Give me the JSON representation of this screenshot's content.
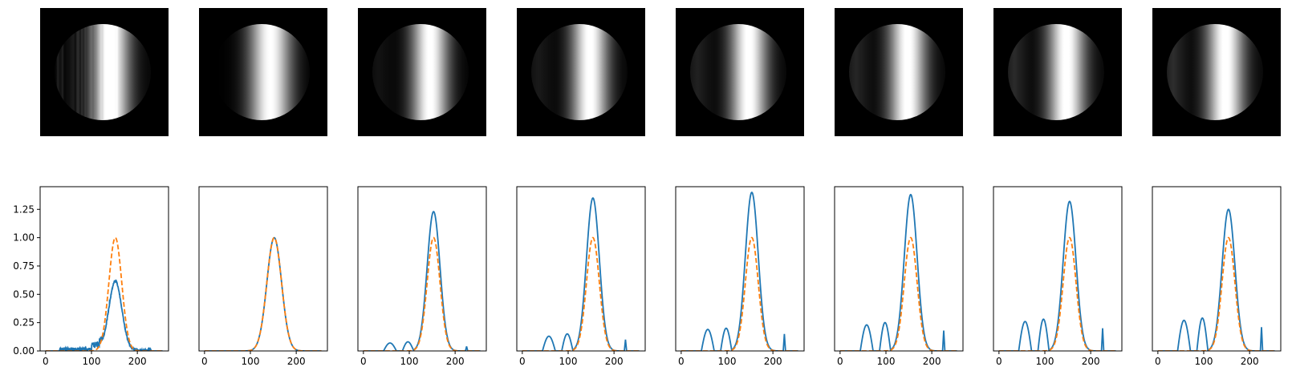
{
  "figure": {
    "columns": 8,
    "colors": {
      "measured": "#1f77b4",
      "reference": "#ff7f0e",
      "background": "#000000",
      "axis": "#000000"
    }
  },
  "chart_data": [
    {
      "type": "line",
      "xlim": [
        -12,
        268
      ],
      "ylim": [
        0,
        1.45
      ],
      "xticks": [
        0,
        100,
        200
      ],
      "xtick_labels": [
        "0",
        "100",
        "200"
      ],
      "yticks": [
        0.0,
        0.25,
        0.5,
        0.75,
        1.0,
        1.25
      ],
      "ytick_labels": [
        "0.00",
        "0.25",
        "0.50",
        "0.75",
        "1.00",
        "1.25"
      ],
      "show_yticks": true,
      "gaussian_center": 152,
      "gaussian_sigma": 14,
      "peak": 0.61,
      "lobes": [],
      "spike": {
        "x": 225,
        "height": 0.01
      },
      "noisy": true,
      "disk_fill": 0.55
    },
    {
      "type": "line",
      "xlim": [
        -12,
        268
      ],
      "ylim": [
        0,
        1.45
      ],
      "xticks": [
        0,
        100,
        200
      ],
      "xtick_labels": [
        "0",
        "100",
        "200"
      ],
      "show_yticks": false,
      "gaussian_center": 152,
      "gaussian_sigma": 16,
      "peak": 1.0,
      "lobes": [],
      "spike": null,
      "noisy": false,
      "disk_fill": 0.0
    },
    {
      "type": "line",
      "xlim": [
        -12,
        268
      ],
      "ylim": [
        0,
        1.45
      ],
      "xticks": [
        0,
        100,
        200
      ],
      "xtick_labels": [
        "0",
        "100",
        "200"
      ],
      "show_yticks": false,
      "gaussian_center": 153,
      "gaussian_sigma": 14,
      "peak": 1.23,
      "lobes": [
        {
          "x": 58,
          "h": 0.07,
          "w": 14
        },
        {
          "x": 97,
          "h": 0.08,
          "w": 12
        }
      ],
      "spike": {
        "x": 225,
        "height": 0.04
      },
      "noisy": false,
      "disk_fill": 0.25
    },
    {
      "type": "line",
      "xlim": [
        -12,
        268
      ],
      "ylim": [
        0,
        1.45
      ],
      "xticks": [
        0,
        100,
        200
      ],
      "xtick_labels": [
        "0",
        "100",
        "200"
      ],
      "show_yticks": false,
      "gaussian_center": 154,
      "gaussian_sigma": 14,
      "peak": 1.35,
      "lobes": [
        {
          "x": 58,
          "h": 0.13,
          "w": 14
        },
        {
          "x": 98,
          "h": 0.15,
          "w": 12
        }
      ],
      "spike": {
        "x": 225,
        "height": 0.1
      },
      "noisy": false,
      "disk_fill": 0.35
    },
    {
      "type": "line",
      "xlim": [
        -12,
        268
      ],
      "ylim": [
        0,
        1.45
      ],
      "xticks": [
        0,
        100,
        200
      ],
      "xtick_labels": [
        "0",
        "100",
        "200"
      ],
      "show_yticks": false,
      "gaussian_center": 154,
      "gaussian_sigma": 14,
      "peak": 1.4,
      "lobes": [
        {
          "x": 58,
          "h": 0.19,
          "w": 14
        },
        {
          "x": 98,
          "h": 0.2,
          "w": 12
        }
      ],
      "spike": {
        "x": 225,
        "height": 0.15
      },
      "noisy": false,
      "disk_fill": 0.45
    },
    {
      "type": "line",
      "xlim": [
        -12,
        268
      ],
      "ylim": [
        0,
        1.45
      ],
      "xticks": [
        0,
        100,
        200
      ],
      "xtick_labels": [
        "0",
        "100",
        "200"
      ],
      "show_yticks": false,
      "gaussian_center": 154,
      "gaussian_sigma": 14,
      "peak": 1.38,
      "lobes": [
        {
          "x": 58,
          "h": 0.23,
          "w": 14
        },
        {
          "x": 98,
          "h": 0.25,
          "w": 12
        }
      ],
      "spike": {
        "x": 226,
        "height": 0.18
      },
      "noisy": false,
      "disk_fill": 0.52
    },
    {
      "type": "line",
      "xlim": [
        -12,
        268
      ],
      "ylim": [
        0,
        1.45
      ],
      "xticks": [
        0,
        100,
        200
      ],
      "xtick_labels": [
        "0",
        "100",
        "200"
      ],
      "show_yticks": false,
      "gaussian_center": 154,
      "gaussian_sigma": 14,
      "peak": 1.32,
      "lobes": [
        {
          "x": 57,
          "h": 0.26,
          "w": 14
        },
        {
          "x": 97,
          "h": 0.28,
          "w": 12
        }
      ],
      "spike": {
        "x": 226,
        "height": 0.2
      },
      "noisy": false,
      "disk_fill": 0.58
    },
    {
      "type": "line",
      "xlim": [
        -12,
        268
      ],
      "ylim": [
        0,
        1.45
      ],
      "xticks": [
        0,
        100,
        200
      ],
      "xtick_labels": [
        "0",
        "100",
        "200"
      ],
      "show_yticks": false,
      "gaussian_center": 154,
      "gaussian_sigma": 14,
      "peak": 1.25,
      "lobes": [
        {
          "x": 57,
          "h": 0.27,
          "w": 14
        },
        {
          "x": 97,
          "h": 0.29,
          "w": 12
        }
      ],
      "spike": {
        "x": 226,
        "height": 0.21
      },
      "noisy": false,
      "disk_fill": 0.62
    }
  ]
}
